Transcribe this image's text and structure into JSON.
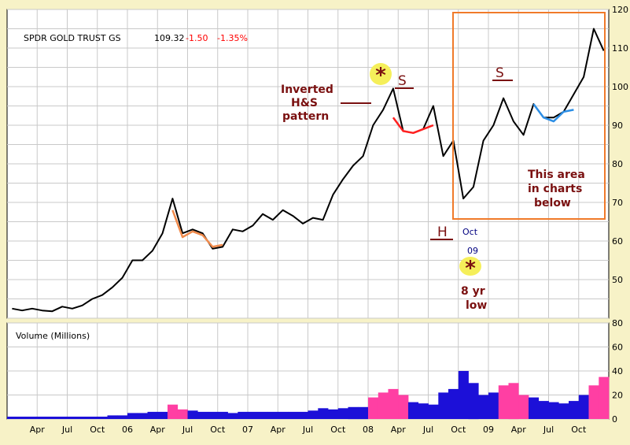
{
  "colors": {
    "background": "#f7f2c7",
    "plot_bg": "#ffffff",
    "grid": "#c9c9c9",
    "price": "#000000",
    "orange_segment": "#f08a4b",
    "red_segment": "#ff2020",
    "blue_segment": "#2d8fe6",
    "volume": "#1c10d8",
    "volume_high": "#ff3fa3",
    "annotation": "#7a1010",
    "highlight": "#f5ef5a",
    "box": "#f07a2a",
    "quote_change": "#ff0000"
  },
  "header": {
    "ticker": "SPDR GOLD TRUST GS",
    "last": "109.32",
    "change": "-1.50",
    "change_pct": "-1.35%"
  },
  "annotations": {
    "inverted_hs": [
      "Inverted",
      "H&S",
      "pattern"
    ],
    "s_left": "S",
    "s_right": "S",
    "h": "H",
    "star": "*",
    "oct": "Oct",
    "yr09": "09",
    "low": [
      "8 yr",
      "low"
    ],
    "area_note": [
      "This area",
      "in charts",
      "below"
    ]
  },
  "chart_data": [
    {
      "type": "line",
      "title": "SPDR GOLD TRUST GS",
      "xlabel": "",
      "ylabel": "",
      "ylim": [
        40,
        120
      ],
      "x_ticks": [
        "Apr",
        "Jul",
        "Oct",
        "06",
        "Apr",
        "Jul",
        "Oct",
        "07",
        "Apr",
        "Jul",
        "Oct",
        "08",
        "Apr",
        "Jul",
        "Oct",
        "09",
        "Apr",
        "Jul",
        "Oct"
      ],
      "y_ticks": [
        50,
        60,
        70,
        80,
        90,
        100,
        110,
        120
      ],
      "grid": true,
      "x_start": "2005-01",
      "x_end": "2009-12",
      "series": [
        {
          "color": "#000000",
          "points": [
            [
              "2005-01",
              42.5
            ],
            [
              "2005-02",
              42.0
            ],
            [
              "2005-03",
              42.5
            ],
            [
              "2005-04",
              42.0
            ],
            [
              "2005-05",
              41.8
            ],
            [
              "2005-06",
              43.0
            ],
            [
              "2005-07",
              42.5
            ],
            [
              "2005-08",
              43.3
            ],
            [
              "2005-09",
              45.0
            ],
            [
              "2005-10",
              46.0
            ],
            [
              "2005-11",
              48.0
            ],
            [
              "2005-12",
              50.5
            ],
            [
              "2006-01",
              55.0
            ],
            [
              "2006-02",
              55.0
            ],
            [
              "2006-03",
              57.5
            ],
            [
              "2006-04",
              62.0
            ],
            [
              "2006-05",
              71.0
            ],
            [
              "2006-06",
              62.0
            ],
            [
              "2006-07",
              63.0
            ],
            [
              "2006-08",
              62.0
            ],
            [
              "2006-09",
              58.0
            ],
            [
              "2006-10",
              58.5
            ],
            [
              "2006-11",
              63.0
            ],
            [
              "2006-12",
              62.5
            ],
            [
              "2007-01",
              64.0
            ],
            [
              "2007-02",
              67.0
            ],
            [
              "2007-03",
              65.5
            ],
            [
              "2007-04",
              68.0
            ],
            [
              "2007-05",
              66.5
            ],
            [
              "2007-06",
              64.5
            ],
            [
              "2007-07",
              66.0
            ],
            [
              "2007-08",
              65.5
            ],
            [
              "2007-09",
              72.0
            ],
            [
              "2007-10",
              76.0
            ],
            [
              "2007-11",
              79.5
            ],
            [
              "2007-12",
              82.0
            ],
            [
              "2008-01",
              90.0
            ],
            [
              "2008-02",
              94.0
            ],
            [
              "2008-03",
              99.5
            ],
            [
              "2008-04",
              88.5
            ],
            [
              "2008-05",
              88.0
            ],
            [
              "2008-06",
              89.0
            ],
            [
              "2008-07",
              95.0
            ],
            [
              "2008-08",
              82.0
            ],
            [
              "2008-09",
              86.0
            ],
            [
              "2008-10",
              71.0
            ],
            [
              "2008-11",
              74.0
            ],
            [
              "2008-12",
              86.0
            ],
            [
              "2009-01",
              90.0
            ],
            [
              "2009-02",
              97.0
            ],
            [
              "2009-03",
              91.0
            ],
            [
              "2009-04",
              87.5
            ],
            [
              "2009-05",
              95.5
            ],
            [
              "2009-06",
              92.0
            ],
            [
              "2009-07",
              92.0
            ],
            [
              "2009-08",
              93.5
            ],
            [
              "2009-09",
              98.0
            ],
            [
              "2009-10",
              102.5
            ],
            [
              "2009-11",
              115.0
            ],
            [
              "2009-12",
              109.3
            ]
          ]
        },
        {
          "color": "#f08a4b",
          "points": [
            [
              "2006-05",
              68.0
            ],
            [
              "2006-06",
              61.0
            ],
            [
              "2006-07",
              62.5
            ],
            [
              "2006-08",
              61.5
            ],
            [
              "2006-09",
              58.5
            ],
            [
              "2006-10",
              59.0
            ]
          ]
        },
        {
          "color": "#ff2020",
          "points": [
            [
              "2008-03",
              92.0
            ],
            [
              "2008-04",
              88.5
            ],
            [
              "2008-05",
              88.0
            ],
            [
              "2008-06",
              89.0
            ],
            [
              "2008-07",
              90.0
            ]
          ]
        },
        {
          "color": "#2d8fe6",
          "points": [
            [
              "2009-05",
              95.5
            ],
            [
              "2009-06",
              92.0
            ],
            [
              "2009-07",
              91.0
            ],
            [
              "2009-08",
              93.5
            ],
            [
              "2009-09",
              94.0
            ]
          ]
        }
      ]
    },
    {
      "type": "bar",
      "title": "Volume (Millions)",
      "ylim": [
        0,
        80
      ],
      "y_ticks": [
        0,
        20,
        40,
        60,
        80
      ],
      "grid": true,
      "x_start": "2005-01",
      "x_end": "2009-12",
      "high_volume_periods": [
        [
          "2006-05",
          "2006-06"
        ],
        [
          "2008-01",
          "2008-04"
        ],
        [
          "2009-02",
          "2009-04"
        ],
        [
          "2009-11",
          "2009-12"
        ]
      ],
      "series": [
        {
          "color": "#1c10d8",
          "values": [
            2,
            2,
            2,
            2,
            2,
            2,
            2,
            2,
            2,
            2,
            3,
            3,
            5,
            5,
            6,
            6,
            12,
            8,
            7,
            6,
            6,
            6,
            5,
            6,
            6,
            6,
            6,
            6,
            6,
            6,
            7,
            9,
            8,
            9,
            10,
            10,
            18,
            22,
            25,
            20,
            14,
            13,
            12,
            22,
            25,
            40,
            30,
            20,
            22,
            28,
            30,
            20,
            18,
            15,
            14,
            13,
            15,
            20,
            28,
            35
          ]
        }
      ]
    }
  ]
}
